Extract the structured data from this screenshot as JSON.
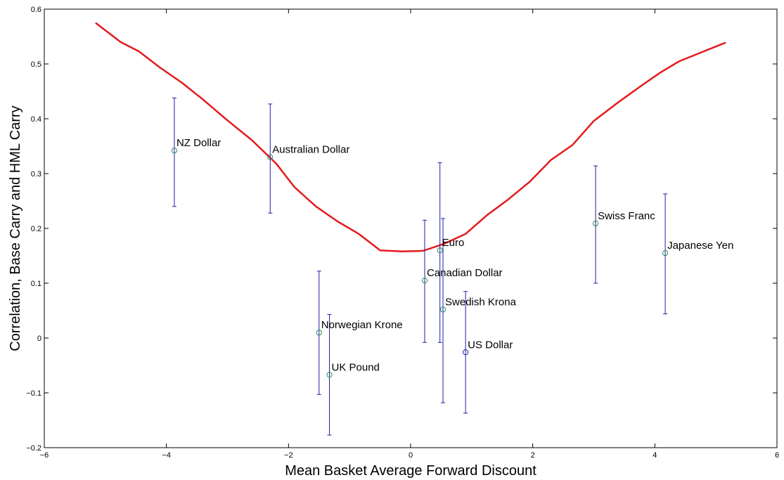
{
  "chart_data": {
    "type": "scatter",
    "title": "",
    "xlabel": "Mean Basket Average Forward Discount",
    "ylabel": "Correlation, Base Carry and HML Carry",
    "xlim": [
      -6,
      6
    ],
    "ylim": [
      -0.2,
      0.6
    ],
    "x_ticks": [
      -6,
      -4,
      -2,
      0,
      2,
      4,
      6
    ],
    "x_tick_labels": [
      "−6",
      "−4",
      "−2",
      "0",
      "2",
      "4",
      "6"
    ],
    "y_ticks": [
      -0.2,
      -0.1,
      0,
      0.1,
      0.2,
      0.3,
      0.4,
      0.5,
      0.6
    ],
    "y_tick_labels": [
      "−0.2",
      "−0.1",
      "0",
      "0.1",
      "0.2",
      "0.3",
      "0.4",
      "0.5",
      "0.6"
    ],
    "grid": false,
    "legend": "none",
    "colors": {
      "line": "#e41a1c",
      "error_bars": "#1f1fa8",
      "markers": "#2e8b57",
      "us_marker": "#1f1fa8"
    },
    "points": [
      {
        "label": "NZ Dollar",
        "x": -3.87,
        "y": 0.342,
        "lower": 0.24,
        "upper": 0.438
      },
      {
        "label": "Australian Dollar",
        "x": -2.3,
        "y": 0.33,
        "lower": 0.228,
        "upper": 0.427
      },
      {
        "label": "Norwegian Krone",
        "x": -1.5,
        "y": 0.01,
        "lower": -0.103,
        "upper": 0.122
      },
      {
        "label": "UK Pound",
        "x": -1.33,
        "y": -0.067,
        "lower": -0.177,
        "upper": 0.043
      },
      {
        "label": "Canadian Dollar",
        "x": 0.23,
        "y": 0.105,
        "lower": -0.008,
        "upper": 0.215
      },
      {
        "label": "Euro",
        "x": 0.48,
        "y": 0.16,
        "lower": -0.008,
        "upper": 0.32
      },
      {
        "label": "Swedish Krona",
        "x": 0.53,
        "y": 0.052,
        "lower": -0.118,
        "upper": 0.218
      },
      {
        "label": "US Dollar",
        "x": 0.9,
        "y": -0.026,
        "lower": -0.137,
        "upper": 0.085
      },
      {
        "label": "Swiss Franc",
        "x": 3.03,
        "y": 0.209,
        "lower": 0.1,
        "upper": 0.314
      },
      {
        "label": "Japanese Yen",
        "x": 4.17,
        "y": 0.155,
        "lower": 0.044,
        "upper": 0.263
      }
    ],
    "series": [
      {
        "type": "line",
        "x": [
          -5.16,
          -4.75,
          -4.45,
          -4.1,
          -3.75,
          -3.4,
          -3.0,
          -2.6,
          -2.2,
          -1.9,
          -1.55,
          -1.2,
          -0.85,
          -0.5,
          -0.15,
          0.2,
          0.55,
          0.9,
          1.25,
          1.6,
          1.95,
          2.3,
          2.65,
          3.0,
          3.4,
          3.8,
          4.1,
          4.4,
          4.8,
          5.16
        ],
        "y": [
          0.575,
          0.54,
          0.523,
          0.493,
          0.466,
          0.435,
          0.397,
          0.361,
          0.318,
          0.275,
          0.24,
          0.213,
          0.19,
          0.16,
          0.158,
          0.159,
          0.172,
          0.19,
          0.224,
          0.253,
          0.285,
          0.325,
          0.352,
          0.396,
          0.43,
          0.462,
          0.485,
          0.505,
          0.523,
          0.539
        ]
      }
    ]
  }
}
